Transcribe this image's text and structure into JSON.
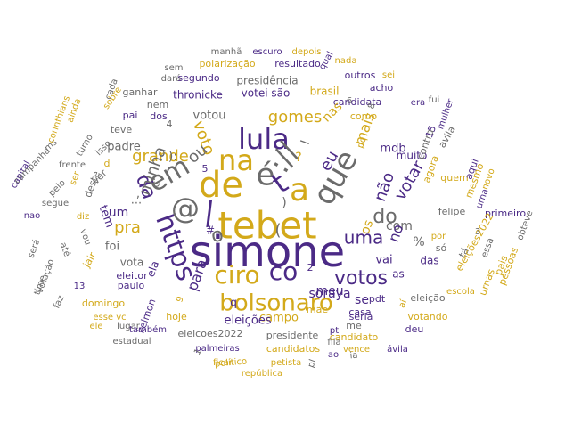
{
  "colors": {
    "purple": "#4b2a86",
    "gold": "#d3a91a",
    "gray": "#6b6b6b",
    "tan": "#c69a55",
    "violet": "#7b58b5"
  },
  "words": [
    {
      "text": "simone",
      "color": "purple"
    },
    {
      "text": "tebet",
      "color": "gold"
    },
    {
      "text": "https",
      "color": "purple"
    },
    {
      "text": "em",
      "color": "gray"
    },
    {
      "text": "de",
      "color": "gold"
    },
    {
      "text": "na",
      "color": "gold"
    },
    {
      "text": "lula",
      "color": "purple"
    },
    {
      "text": "://",
      "color": "gray"
    },
    {
      "text": "que",
      "color": "gray"
    },
    {
      "text": "é",
      "color": "gray"
    },
    {
      "text": "t",
      "color": "purple"
    },
    {
      "text": "a",
      "color": "gold"
    },
    {
      "text": "ciro",
      "color": "gold"
    },
    {
      "text": "co",
      "color": "purple"
    },
    {
      "text": "bolsonaro",
      "color": "gold"
    },
    {
      "text": "@",
      "color": "gray"
    },
    {
      "text": "/",
      "color": "purple"
    },
    {
      "text": "da",
      "color": "purple"
    },
    {
      "text": "o",
      "color": "gray"
    },
    {
      "text": "votos",
      "color": "purple"
    },
    {
      "text": "voto",
      "color": "gold"
    },
    {
      "text": "do",
      "color": "gray"
    },
    {
      "text": "não",
      "color": "purple"
    },
    {
      "text": "votar",
      "color": "purple"
    },
    {
      "text": "eu",
      "color": "purple"
    },
    {
      "text": "gomes",
      "color": "gold"
    },
    {
      "text": "grande",
      "color": "gold"
    },
    {
      "text": "minha",
      "color": "gray"
    },
    {
      "text": "pra",
      "color": "gold"
    },
    {
      "text": "com",
      "color": "gray"
    },
    {
      "text": "mais",
      "color": "gold"
    },
    {
      "text": "soraya",
      "color": "purple"
    },
    {
      "text": "meu",
      "color": "purple"
    },
    {
      "text": "para",
      "color": "purple"
    },
    {
      "text": "campo",
      "color": "gold"
    },
    {
      "text": "eleições",
      "color": "purple"
    },
    {
      "text": "votou",
      "color": "gray"
    },
    {
      "text": "thronicke",
      "color": "purple"
    },
    {
      "text": "votei são",
      "color": "purple"
    },
    {
      "text": "presidência",
      "color": "gray"
    },
    {
      "text": "polarização",
      "color": "gold"
    },
    {
      "text": "resultado",
      "color": "purple"
    },
    {
      "text": "manhã",
      "color": "gray"
    },
    {
      "text": "escuro",
      "color": "purple"
    },
    {
      "text": "depois",
      "color": "gold"
    },
    {
      "text": "padre",
      "color": "gray"
    },
    {
      "text": "teve",
      "color": "gray"
    },
    {
      "text": "pai",
      "color": "purple"
    },
    {
      "text": "dos",
      "color": "purple"
    },
    {
      "text": "nem",
      "color": "gray"
    },
    {
      "text": "ganhar",
      "color": "gray"
    },
    {
      "text": "dará",
      "color": "gray"
    },
    {
      "text": "segundo",
      "color": "purple"
    },
    {
      "text": "sem",
      "color": "gray"
    },
    {
      "text": "brasil",
      "color": "gold"
    },
    {
      "text": "candidata",
      "color": "purple"
    },
    {
      "text": "como",
      "color": "gold"
    },
    {
      "text": "outros",
      "color": "purple"
    },
    {
      "text": "sei",
      "color": "gold"
    },
    {
      "text": "nada",
      "color": "gold"
    },
    {
      "text": "acho",
      "color": "purple"
    },
    {
      "text": "mdb",
      "color": "purple"
    },
    {
      "text": "muito",
      "color": "purple"
    },
    {
      "text": "um",
      "color": "purple"
    },
    {
      "text": "tem",
      "color": "purple"
    },
    {
      "text": "foi",
      "color": "gray"
    },
    {
      "text": "vota",
      "color": "gray"
    },
    {
      "text": "eleitor",
      "color": "purple"
    },
    {
      "text": "ela",
      "color": "purple"
    },
    {
      "text": "vai",
      "color": "purple"
    },
    {
      "text": "das",
      "color": "purple"
    },
    {
      "text": "felipe",
      "color": "gray"
    },
    {
      "text": "primeiro",
      "color": "purple"
    },
    {
      "text": "pdt",
      "color": "purple"
    },
    {
      "text": "eleição",
      "color": "gray"
    },
    {
      "text": "seria",
      "color": "purple"
    },
    {
      "text": "votando",
      "color": "gold"
    },
    {
      "text": "casa",
      "color": "purple"
    },
    {
      "text": "me",
      "color": "gray"
    },
    {
      "text": "deu",
      "color": "purple"
    },
    {
      "text": "mãe",
      "color": "gold"
    },
    {
      "text": "hoje",
      "color": "gold"
    },
    {
      "text": "eleicoes2022",
      "color": "gray"
    },
    {
      "text": "presidente",
      "color": "gray"
    },
    {
      "text": "candidatos",
      "color": "gold"
    },
    {
      "text": "candidato",
      "color": "gold"
    },
    {
      "text": "palmeiras",
      "color": "purple"
    },
    {
      "text": "petista",
      "color": "gold"
    },
    {
      "text": "político",
      "color": "gold"
    },
    {
      "text": "ficar",
      "color": "gold"
    },
    {
      "text": "república",
      "color": "gold"
    },
    {
      "text": "fila",
      "color": "gray"
    },
    {
      "text": "vence",
      "color": "gold"
    },
    {
      "text": "ávila",
      "color": "purple"
    },
    {
      "text": "pt",
      "color": "purple"
    },
    {
      "text": "ao",
      "color": "purple"
    },
    {
      "text": "ia",
      "color": "gray"
    },
    {
      "text": "lugar",
      "color": "gray"
    },
    {
      "text": "também",
      "color": "purple"
    },
    {
      "text": "estadual",
      "color": "gray"
    },
    {
      "text": "domingo",
      "color": "gold"
    },
    {
      "text": "esse vc",
      "color": "gold"
    },
    {
      "text": "ele",
      "color": "gold"
    },
    {
      "text": "13",
      "color": "purple"
    },
    {
      "text": "paulo",
      "color": "purple"
    },
    {
      "text": "kelmon",
      "color": "purple"
    },
    {
      "text": "jair",
      "color": "gold"
    },
    {
      "text": "diz",
      "color": "gold"
    },
    {
      "text": "vou",
      "color": "gray"
    },
    {
      "text": "até",
      "color": "gray"
    },
    {
      "text": "faz",
      "color": "gray"
    },
    {
      "text": "votação",
      "color": "gray"
    },
    {
      "text": "time",
      "color": "gray"
    },
    {
      "text": "será",
      "color": "gray"
    },
    {
      "text": "nao",
      "color": "purple"
    },
    {
      "text": "segue",
      "color": "gray"
    },
    {
      "text": "capital",
      "color": "purple"
    },
    {
      "text": "campanha",
      "color": "gray"
    },
    {
      "text": "ms",
      "color": "gray"
    },
    {
      "text": "pelo",
      "color": "gray"
    },
    {
      "text": "frente",
      "color": "gray"
    },
    {
      "text": "isso",
      "color": "gray"
    },
    {
      "text": "ver",
      "color": "gray"
    },
    {
      "text": "turno",
      "color": "gray"
    },
    {
      "text": "corinthians",
      "color": "gold"
    },
    {
      "text": "ainda",
      "color": "gold"
    },
    {
      "text": "sobre",
      "color": "gold"
    },
    {
      "text": "cada",
      "color": "gray"
    },
    {
      "text": "deste",
      "color": "gray"
    },
    {
      "text": "ser",
      "color": "gold"
    },
    {
      "text": "tá",
      "color": "gray"
    },
    {
      "text": "eleições2022",
      "color": "gold"
    },
    {
      "text": "urnas",
      "color": "gold"
    },
    {
      "text": "pais",
      "color": "gold"
    },
    {
      "text": "pessoas",
      "color": "gold"
    },
    {
      "text": "escola",
      "color": "gold"
    },
    {
      "text": "essa",
      "color": "gray"
    },
    {
      "text": "obteve",
      "color": "gray"
    },
    {
      "text": "contra",
      "color": "gray"
    },
    {
      "text": "agora",
      "color": "gold"
    },
    {
      "text": "quem",
      "color": "gold"
    },
    {
      "text": "aqui",
      "color": "purple"
    },
    {
      "text": "mesmo",
      "color": "gold"
    },
    {
      "text": "novo",
      "color": "gold"
    },
    {
      "text": "urna",
      "color": "purple"
    },
    {
      "text": "avila",
      "color": "gray"
    },
    {
      "text": "mulher",
      "color": "purple"
    },
    {
      "text": "fui",
      "color": "gray"
    },
    {
      "text": "era",
      "color": "purple"
    },
    {
      "text": "qual",
      "color": "purple"
    },
    {
      "text": "nas",
      "color": "gold"
    },
    {
      "text": "os",
      "color": "gold"
    },
    {
      "text": "se",
      "color": "purple"
    },
    {
      "text": "as",
      "color": "purple"
    },
    {
      "text": "por",
      "color": "gold"
    },
    {
      "text": "só",
      "color": "gray"
    },
    {
      "text": "15",
      "color": "purple"
    },
    {
      "text": "pq",
      "color": "gold"
    },
    {
      "text": "aí",
      "color": "gold"
    },
    {
      "text": "ou",
      "color": "gray"
    },
    {
      "text": "no",
      "color": "purple"
    },
    {
      "text": "uma",
      "color": "purple"
    },
    {
      "text": "%",
      "color": "gray"
    },
    {
      "text": "#",
      "color": "purple"
    },
    {
      "text": "):",
      "color": "gray"
    },
    {
      "text": "?",
      "color": "gold"
    },
    {
      "text": "!",
      "color": "gray"
    },
    {
      "text": "(",
      "color": "gray"
    },
    {
      "text": ")",
      "color": "gray"
    },
    {
      "text": ",",
      "color": "gray"
    },
    {
      "text": "...",
      "color": "gray"
    },
    {
      "text": "c",
      "color": "gray"
    },
    {
      "text": "q",
      "color": "purple"
    },
    {
      "text": "d",
      "color": "gold"
    },
    {
      "text": "2",
      "color": "purple"
    },
    {
      "text": "3",
      "color": "gray"
    },
    {
      "text": "4",
      "color": "gray"
    },
    {
      "text": "5",
      "color": "purple"
    },
    {
      "text": "6",
      "color": "gray"
    },
    {
      "text": "8",
      "color": "gray"
    },
    {
      "text": "9",
      "color": "gold"
    },
    {
      "text": "1",
      "color": "gray"
    },
    {
      "text": "pl",
      "color": "gray"
    },
    {
      "text": "x",
      "color": "gray"
    },
    {
      "text": "já",
      "color": "gray"
    },
    {
      "text": "entre",
      "color": "purple"
    },
    {
      "text": "pro",
      "color": "purple"
    }
  ]
}
